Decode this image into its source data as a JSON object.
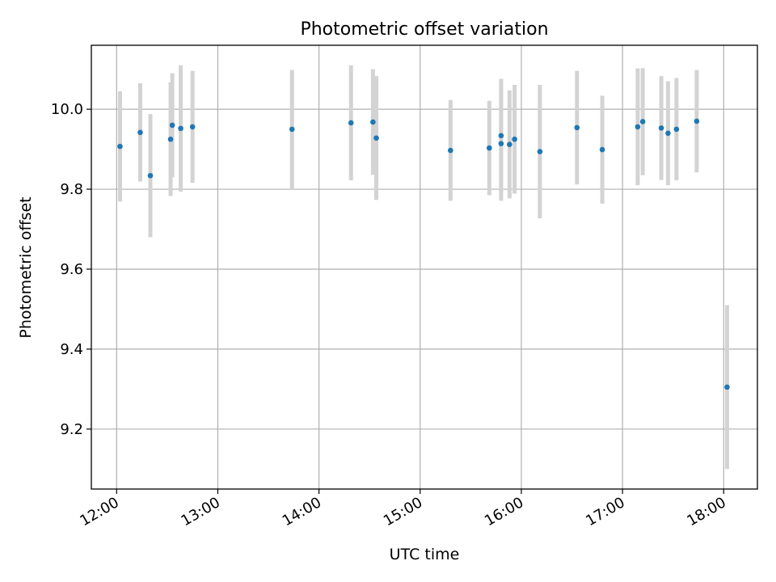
{
  "chart_data": {
    "type": "scatter",
    "title": "Photometric offset variation",
    "xlabel": "UTC time",
    "ylabel": "Photometric offset",
    "xlim": [
      "11:45",
      "18:20"
    ],
    "ylim": [
      9.05,
      10.16
    ],
    "x_ticks": [
      "12:00",
      "13:00",
      "14:00",
      "15:00",
      "16:00",
      "17:00",
      "18:00"
    ],
    "y_ticks": [
      "9.2",
      "9.4",
      "9.6",
      "9.8",
      "10.0"
    ],
    "grid": true,
    "marker_color": "#1f77b4",
    "errorbar_color": "#d3d3d3",
    "points": [
      {
        "x": "12:02",
        "y": 9.907,
        "err": 0.138
      },
      {
        "x": "12:14",
        "y": 9.942,
        "err": 0.123
      },
      {
        "x": "12:20",
        "y": 9.834,
        "err": 0.154
      },
      {
        "x": "12:32",
        "y": 9.925,
        "err": 0.142
      },
      {
        "x": "12:33",
        "y": 9.96,
        "err": 0.13
      },
      {
        "x": "12:38",
        "y": 9.952,
        "err": 0.158
      },
      {
        "x": "12:45",
        "y": 9.956,
        "err": 0.14
      },
      {
        "x": "13:44",
        "y": 9.95,
        "err": 0.148
      },
      {
        "x": "14:19",
        "y": 9.966,
        "err": 0.144
      },
      {
        "x": "14:32",
        "y": 9.968,
        "err": 0.132
      },
      {
        "x": "14:34",
        "y": 9.928,
        "err": 0.155
      },
      {
        "x": "15:18",
        "y": 9.897,
        "err": 0.126
      },
      {
        "x": "15:41",
        "y": 9.903,
        "err": 0.118
      },
      {
        "x": "15:48",
        "y": 9.914,
        "err": 0.143
      },
      {
        "x": "15:48",
        "y": 9.934,
        "err": 0.142
      },
      {
        "x": "15:53",
        "y": 9.912,
        "err": 0.135
      },
      {
        "x": "15:56",
        "y": 9.925,
        "err": 0.136
      },
      {
        "x": "16:11",
        "y": 9.894,
        "err": 0.167
      },
      {
        "x": "16:33",
        "y": 9.954,
        "err": 0.142
      },
      {
        "x": "16:48",
        "y": 9.899,
        "err": 0.135
      },
      {
        "x": "17:09",
        "y": 9.956,
        "err": 0.146
      },
      {
        "x": "17:12",
        "y": 9.969,
        "err": 0.134
      },
      {
        "x": "17:23",
        "y": 9.953,
        "err": 0.13
      },
      {
        "x": "17:27",
        "y": 9.94,
        "err": 0.13
      },
      {
        "x": "17:32",
        "y": 9.95,
        "err": 0.128
      },
      {
        "x": "17:44",
        "y": 9.97,
        "err": 0.128
      },
      {
        "x": "18:02",
        "y": 9.305,
        "err": 0.205
      }
    ]
  }
}
